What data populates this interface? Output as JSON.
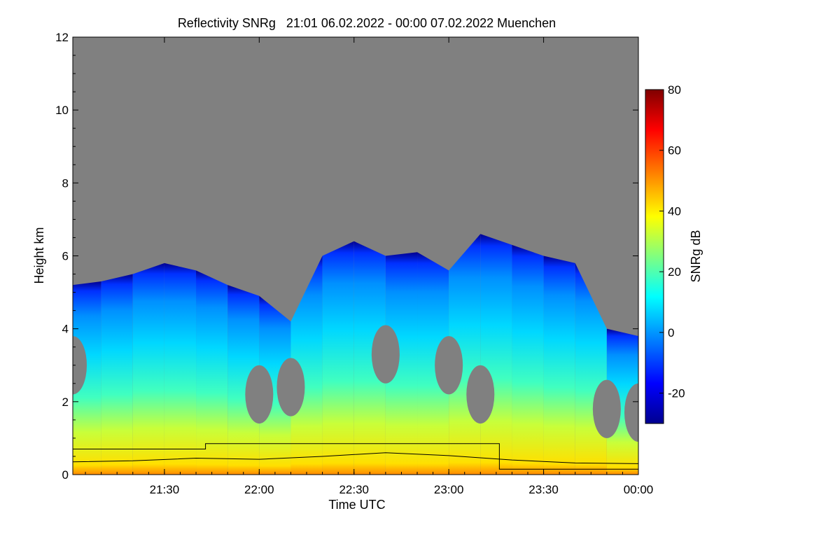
{
  "chart_data": {
    "type": "heatmap",
    "title": "Reflectivity SNRg   21:01 06.02.2022 - 00:00 07.02.2022 Muenchen",
    "xlabel": "Time UTC",
    "ylabel": "Height km",
    "colorbar_label": "SNRg dB",
    "xlim": [
      "21:01",
      "00:00"
    ],
    "ylim": [
      0,
      12
    ],
    "x_ticks": [
      "21:30",
      "22:00",
      "22:30",
      "23:00",
      "23:30",
      "00:00"
    ],
    "y_ticks": [
      "0",
      "2",
      "4",
      "6",
      "8",
      "10",
      "12"
    ],
    "colorbar_range": [
      -30,
      80
    ],
    "colorbar_ticks": [
      "80",
      "60",
      "40",
      "20",
      "0",
      "-20"
    ],
    "colors": {
      "no_signal": "#808080",
      "colormap": [
        "#00008f",
        "#0000ff",
        "#0080ff",
        "#00ffff",
        "#80ff80",
        "#ffff00",
        "#ff8000",
        "#ff0000",
        "#800000"
      ]
    },
    "echo_top_km": [
      {
        "time": "21:01",
        "top": 5.2,
        "gap_top": 3.0
      },
      {
        "time": "21:10",
        "top": 5.3,
        "gap_top": 0
      },
      {
        "time": "21:20",
        "top": 5.5,
        "gap_top": 0
      },
      {
        "time": "21:30",
        "top": 5.8,
        "gap_top": 0
      },
      {
        "time": "21:40",
        "top": 5.6,
        "gap_top": 0
      },
      {
        "time": "21:50",
        "top": 5.2,
        "gap_top": 0
      },
      {
        "time": "22:00",
        "top": 4.9,
        "gap_top": 2.2
      },
      {
        "time": "22:10",
        "top": 4.2,
        "gap_top": 2.4
      },
      {
        "time": "22:20",
        "top": 6.0,
        "gap_top": 0
      },
      {
        "time": "22:30",
        "top": 6.4,
        "gap_top": 0
      },
      {
        "time": "22:40",
        "top": 6.0,
        "gap_top": 3.3
      },
      {
        "time": "22:50",
        "top": 6.1,
        "gap_top": 0
      },
      {
        "time": "23:00",
        "top": 5.6,
        "gap_top": 3.0
      },
      {
        "time": "23:10",
        "top": 6.6,
        "gap_top": 2.2
      },
      {
        "time": "23:20",
        "top": 6.3,
        "gap_top": 0
      },
      {
        "time": "23:30",
        "top": 6.0,
        "gap_top": 0
      },
      {
        "time": "23:40",
        "top": 5.8,
        "gap_top": 0
      },
      {
        "time": "23:50",
        "top": 4.0,
        "gap_top": 1.8
      },
      {
        "time": "00:00",
        "top": 3.8,
        "gap_top": 1.7
      }
    ],
    "lines": [
      {
        "points": [
          {
            "time": "21:01",
            "height_km": 0.7
          },
          {
            "time": "21:43",
            "height_km": 0.7
          },
          {
            "time": "21:43",
            "height_km": 0.85
          },
          {
            "time": "23:16",
            "height_km": 0.85
          },
          {
            "time": "23:16",
            "height_km": 0.15
          },
          {
            "time": "00:00",
            "height_km": 0.15
          }
        ]
      },
      {
        "points": [
          {
            "time": "21:01",
            "height_km": 0.35
          },
          {
            "time": "21:20",
            "height_km": 0.38
          },
          {
            "time": "21:40",
            "height_km": 0.45
          },
          {
            "time": "22:00",
            "height_km": 0.42
          },
          {
            "time": "22:20",
            "height_km": 0.5
          },
          {
            "time": "22:40",
            "height_km": 0.6
          },
          {
            "time": "23:00",
            "height_km": 0.52
          },
          {
            "time": "23:20",
            "height_km": 0.4
          },
          {
            "time": "23:40",
            "height_km": 0.32
          },
          {
            "time": "00:00",
            "height_km": 0.3
          }
        ]
      }
    ]
  }
}
